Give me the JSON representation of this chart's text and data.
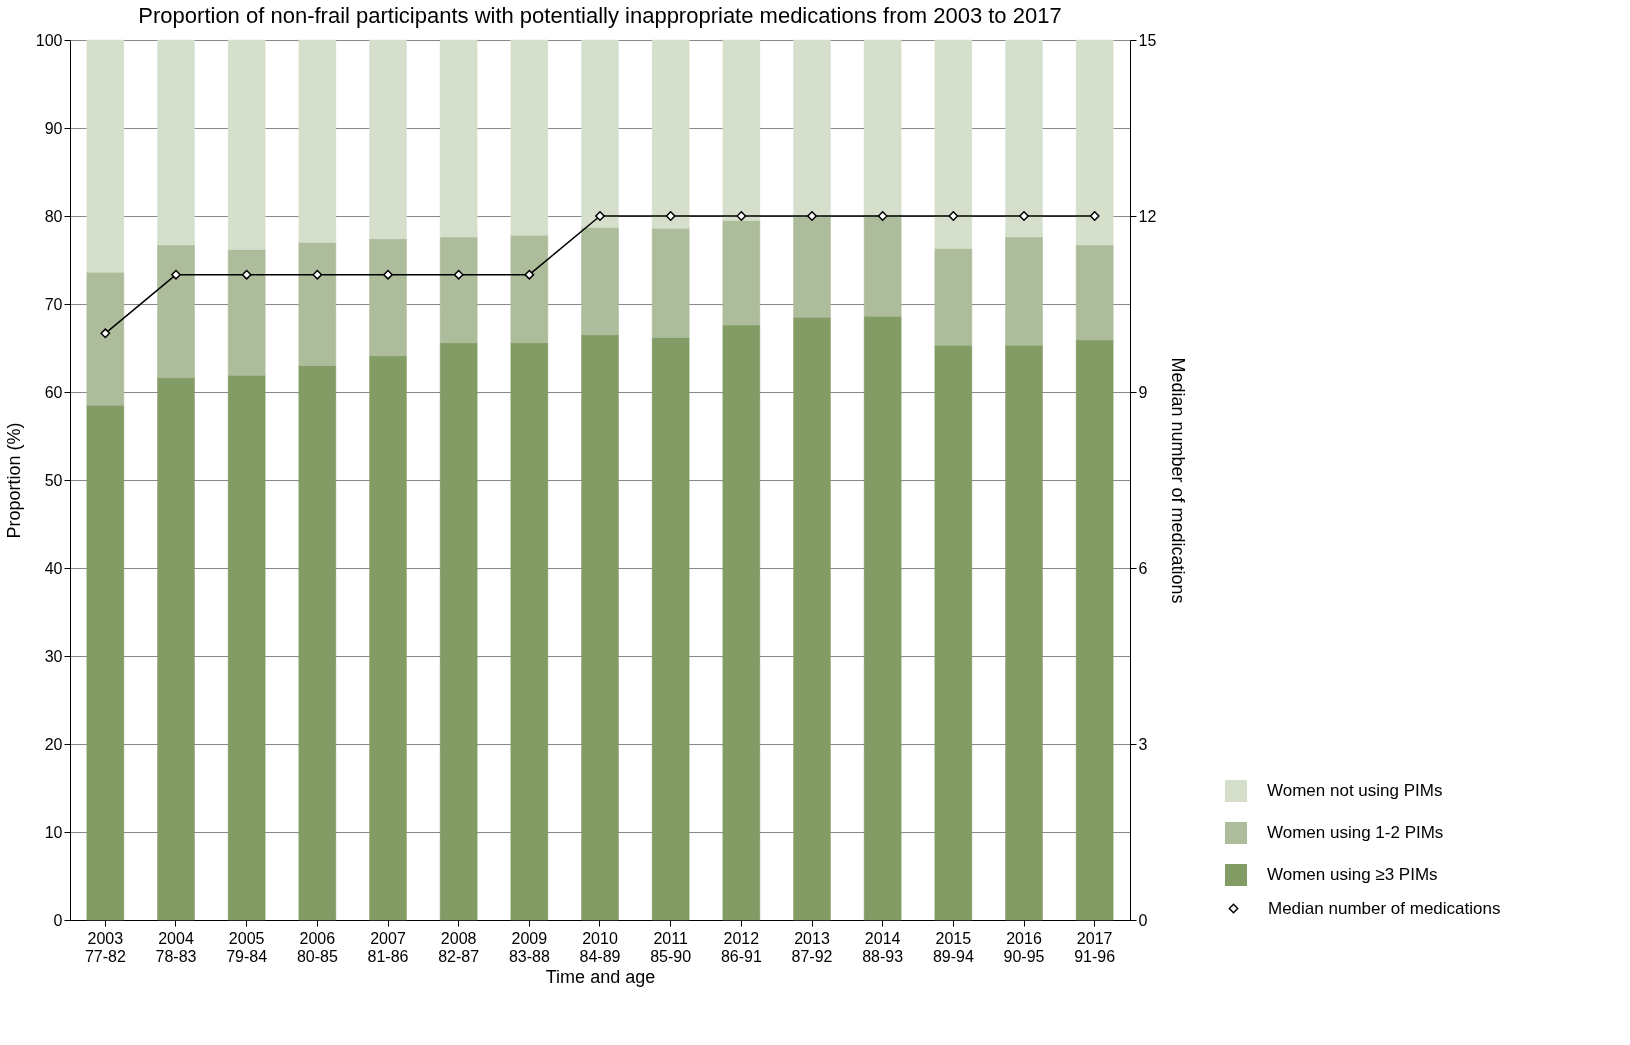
{
  "chart_data": {
    "type": "bar",
    "title": "Proportion of non-frail participants with potentially inappropriate medications from 2003 to 2017",
    "xlabel": "Time and age",
    "ylabel": "Proportion (%)",
    "y2label": "Median number of medications",
    "categories": [
      "2003\n77-82",
      "2004\n78-83",
      "2005\n79-84",
      "2006\n80-85",
      "2007\n81-86",
      "2008\n82-87",
      "2009\n83-88",
      "2010\n84-89",
      "2011\n85-90",
      "2012\n86-91",
      "2013\n87-92",
      "2014\n88-93",
      "2015\n89-94",
      "2016\n90-95",
      "2017\n91-96"
    ],
    "series": [
      {
        "name": "Women using ≥3 PIMs",
        "color": "#839b65",
        "values": [
          58.5,
          61.6,
          61.9,
          63.0,
          64.1,
          65.6,
          65.6,
          66.5,
          66.2,
          67.6,
          68.5,
          68.6,
          65.3,
          65.3,
          65.9
        ]
      },
      {
        "name": "Women using 1-2 PIMs",
        "color": "#adbc9a",
        "values": [
          15.1,
          15.1,
          14.3,
          14.0,
          13.3,
          12.0,
          12.2,
          12.2,
          12.4,
          11.9,
          11.5,
          11.5,
          11.0,
          12.3,
          10.8
        ]
      },
      {
        "name": "Women not using PIMs",
        "color": "#d6dfcc",
        "values": [
          26.4,
          23.3,
          23.8,
          23.0,
          22.6,
          22.4,
          22.2,
          21.3,
          21.4,
          20.5,
          20.0,
          19.9,
          23.7,
          22.4,
          23.3
        ]
      },
      {
        "name": "Median number of medications",
        "type": "line",
        "axis": "y2",
        "color": "#000000",
        "values": [
          10,
          11,
          11,
          11,
          11,
          11,
          11,
          12,
          12,
          12,
          12,
          12,
          12,
          12,
          12
        ]
      }
    ],
    "stacked": true,
    "ylim": [
      0,
      100
    ],
    "yticks": [
      0,
      10,
      20,
      30,
      40,
      50,
      60,
      70,
      80,
      90,
      100
    ],
    "y2lim": [
      0,
      15
    ],
    "y2ticks": [
      0,
      3,
      6,
      9,
      12,
      15
    ],
    "grid": "y",
    "legend": "bottom right",
    "marker": "diamond",
    "line_style": "solid"
  }
}
